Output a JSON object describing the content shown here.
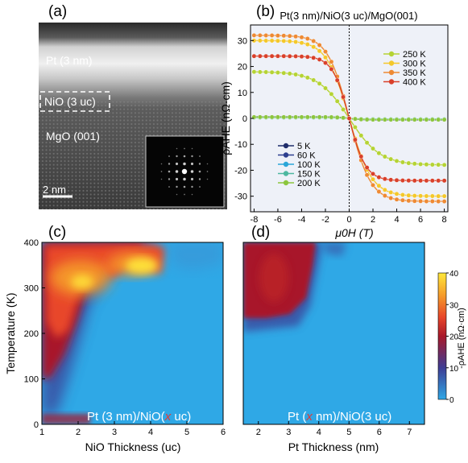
{
  "panels": {
    "a": {
      "label": "(a)",
      "layer_pt": "Pt (3 nm)",
      "layer_nio": "NiO (3 uc)",
      "layer_mgo": "MgO (001)",
      "scale_bar": "2 nm"
    },
    "b": {
      "label": "(b)"
    },
    "c": {
      "label": "(c)"
    },
    "d": {
      "label": "(d)"
    }
  },
  "colorbar": {
    "label": "-ρAHE (nΩ·cm)",
    "ticks": [
      "0",
      "10",
      "20",
      "30",
      "40"
    ],
    "colors": [
      "#2fa8e6",
      "#3e3d94",
      "#a8182a",
      "#e8462a",
      "#f59a2a",
      "#ffe83a"
    ]
  },
  "chart_data": [
    {
      "type": "line",
      "title": "Pt(3 nm)/NiO(3 uc)/MgO(001)",
      "xlabel": "μ0H (T)",
      "ylabel": "ρAHE (nΩ·cm)",
      "xlim": [
        -8.3,
        8.3
      ],
      "ylim": [
        -36,
        36
      ],
      "xticks": [
        "-8",
        "-6",
        "-4",
        "-2",
        "0",
        "2",
        "4",
        "6",
        "8"
      ],
      "yticks": [
        "-30",
        "-20",
        "-10",
        "0",
        "10",
        "20",
        "30"
      ],
      "legend_high": [
        "250 K",
        "300 K",
        "350 K",
        "400 K"
      ],
      "legend_low": [
        "5 K",
        "60 K",
        "100 K",
        "150 K",
        "200 K"
      ],
      "series": [
        {
          "name": "5 K",
          "color": "#1f2d6b",
          "sat": 0.6,
          "width": 1.0
        },
        {
          "name": "60 K",
          "color": "#2c3e8f",
          "sat": 0.5,
          "width": 1.0
        },
        {
          "name": "100 K",
          "color": "#2aa6d8",
          "sat": 0.4,
          "width": 1.0
        },
        {
          "name": "150 K",
          "color": "#4db8a0",
          "sat": 0.3,
          "width": 1.0
        },
        {
          "name": "200 K",
          "color": "#8cc63e",
          "sat": 0.5,
          "width": 1.0
        },
        {
          "name": "250 K",
          "color": "#b5d334",
          "sat": 18,
          "width": 2.6
        },
        {
          "name": "300 K",
          "color": "#f4c82a",
          "sat": 30,
          "width": 1.9
        },
        {
          "name": "350 K",
          "color": "#ee8a34",
          "sat": 32,
          "width": 1.8
        },
        {
          "name": "400 K",
          "color": "#d9402a",
          "sat": 24,
          "width": 1.4
        }
      ]
    },
    {
      "type": "heatmap",
      "xlabel": "NiO Thickness (uc)",
      "ylabel": "Temperature (K)",
      "xlim": [
        1,
        6
      ],
      "ylim": [
        0,
        400
      ],
      "xticks": [
        "1",
        "2",
        "3",
        "4",
        "5",
        "6"
      ],
      "yticks": [
        "0",
        "100",
        "200",
        "300",
        "400"
      ],
      "annotation_parts": [
        "Pt (3 nm)/NiO(",
        "x",
        " uc)"
      ]
    },
    {
      "type": "heatmap",
      "xlabel": "Pt Thickness (nm)",
      "xlim": [
        1.5,
        7.5
      ],
      "ylim": [
        0,
        400
      ],
      "xticks": [
        "2",
        "3",
        "4",
        "5",
        "6",
        "7"
      ],
      "annotation_parts": [
        "Pt (",
        "x",
        " nm)/NiO(3 uc)"
      ]
    }
  ]
}
